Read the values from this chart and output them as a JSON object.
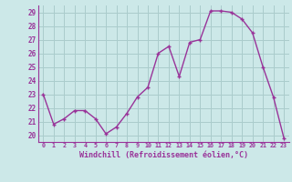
{
  "x": [
    0,
    1,
    2,
    3,
    4,
    5,
    6,
    7,
    8,
    9,
    10,
    11,
    12,
    13,
    14,
    15,
    16,
    17,
    18,
    19,
    20,
    21,
    22,
    23
  ],
  "y": [
    23.0,
    20.8,
    21.2,
    21.8,
    21.8,
    21.2,
    20.1,
    20.6,
    21.6,
    22.8,
    23.5,
    26.0,
    26.5,
    24.3,
    26.8,
    27.0,
    29.1,
    29.1,
    29.0,
    28.5,
    27.5,
    25.0,
    22.8,
    19.8
  ],
  "line_color": "#993399",
  "marker": "+",
  "marker_size": 3.5,
  "linewidth": 1.0,
  "bg_color": "#cce8e8",
  "grid_color": "#aacccc",
  "xlabel": "Windchill (Refroidissement éolien,°C)",
  "xlabel_color": "#993399",
  "tick_color": "#993399",
  "ylim": [
    19.5,
    29.5
  ],
  "xlim": [
    -0.5,
    23.5
  ],
  "yticks": [
    20,
    21,
    22,
    23,
    24,
    25,
    26,
    27,
    28,
    29
  ],
  "xticks": [
    0,
    1,
    2,
    3,
    4,
    5,
    6,
    7,
    8,
    9,
    10,
    11,
    12,
    13,
    14,
    15,
    16,
    17,
    18,
    19,
    20,
    21,
    22,
    23
  ],
  "xtick_labels": [
    "0",
    "1",
    "2",
    "3",
    "4",
    "5",
    "6",
    "7",
    "8",
    "9",
    "10",
    "11",
    "12",
    "13",
    "14",
    "15",
    "16",
    "17",
    "18",
    "19",
    "20",
    "21",
    "22",
    "23"
  ],
  "ytick_labels": [
    "20",
    "21",
    "22",
    "23",
    "24",
    "25",
    "26",
    "27",
    "28",
    "29"
  ]
}
